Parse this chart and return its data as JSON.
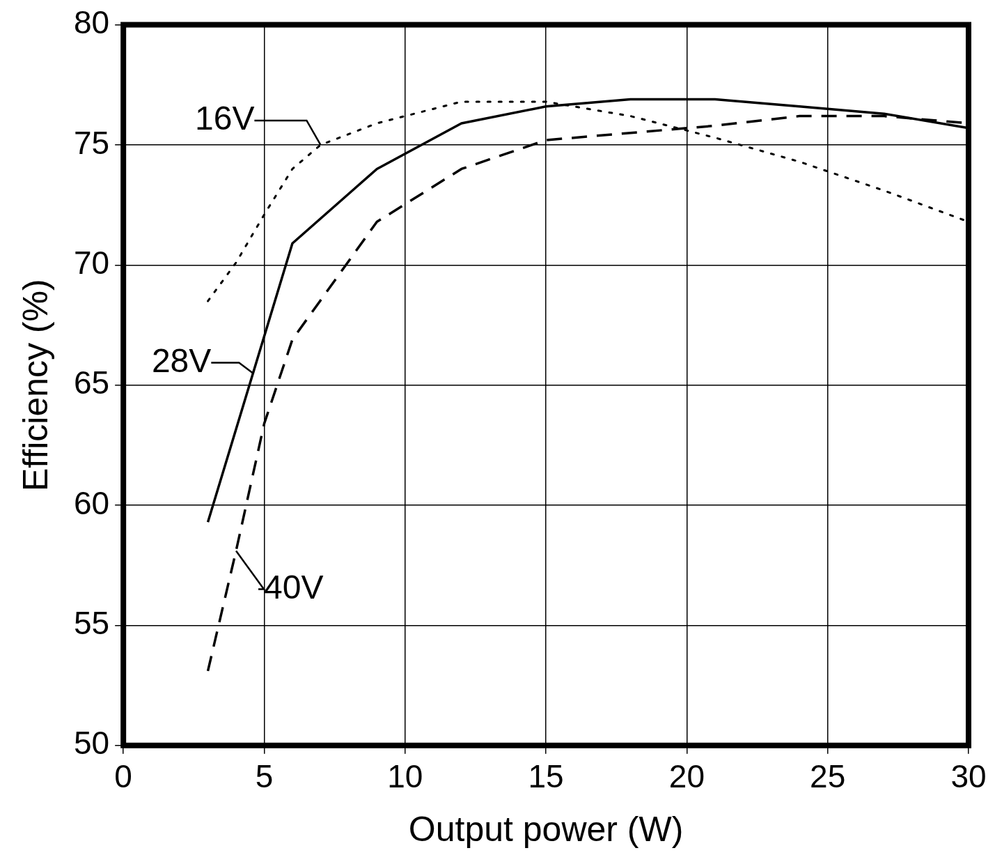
{
  "chart_data": {
    "type": "line",
    "xlabel": "Output power (W)",
    "ylabel": "Efficiency (%)",
    "xlim": [
      0,
      30
    ],
    "xticks": [
      0,
      5,
      10,
      15,
      20,
      25,
      30
    ],
    "ylim": [
      50,
      80
    ],
    "yticks": [
      50,
      55,
      60,
      65,
      70,
      75,
      80
    ],
    "grid": true,
    "legend": false,
    "marker": "none",
    "series": [
      {
        "color": "#000000",
        "line_style": "dotted",
        "x": [
          3,
          4,
          5,
          6,
          7,
          9,
          10,
          12,
          15,
          18,
          21,
          24,
          27,
          30
        ],
        "values": [
          68.5,
          70.1,
          72.1,
          74.0,
          75.0,
          75.9,
          76.2,
          76.8,
          76.8,
          76.2,
          75.3,
          74.3,
          73.1,
          71.8
        ]
      },
      {
        "color": "#000000",
        "line_style": "solid",
        "x": [
          3,
          6,
          9,
          12,
          15,
          18,
          21,
          24,
          27,
          30
        ],
        "values": [
          59.3,
          70.9,
          74.0,
          75.9,
          76.6,
          76.9,
          76.9,
          76.6,
          76.3,
          75.7
        ]
      },
      {
        "color": "#000000",
        "line_style": "dashed",
        "x": [
          3,
          4,
          5,
          6,
          9,
          12,
          15,
          18,
          21,
          24,
          27,
          30
        ],
        "values": [
          53.1,
          58.1,
          63.4,
          66.9,
          71.8,
          74.0,
          75.2,
          75.5,
          75.8,
          76.2,
          76.2,
          75.9
        ]
      }
    ],
    "annotations": [
      {
        "text": "16V",
        "x": 7,
        "y": 75.0
      },
      {
        "text": "28V",
        "x": 4.6,
        "y": 65.5
      },
      {
        "text": "40V",
        "x": 4.0,
        "y": 58.1
      }
    ]
  }
}
